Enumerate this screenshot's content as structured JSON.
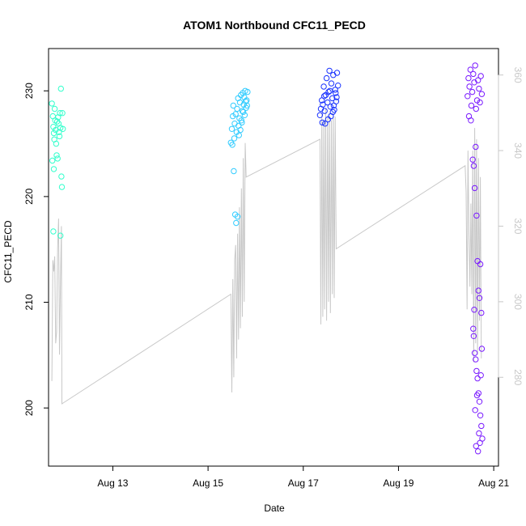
{
  "chart_data": {
    "type": "scatter",
    "title": "ATOM1 Northbound CFC11_PECD",
    "xlabel": "Date",
    "ylabel": "CFC11_PECD",
    "y2label": "",
    "xlim": [
      11.65,
      21.1
    ],
    "ylim": [
      194.5,
      234
    ],
    "y2lim": [
      256.5,
      367
    ],
    "x_ticks": [
      {
        "value": 13,
        "label": "Aug 13"
      },
      {
        "value": 15,
        "label": "Aug 15"
      },
      {
        "value": 17,
        "label": "Aug 17"
      },
      {
        "value": 19,
        "label": "Aug 19"
      },
      {
        "value": 21,
        "label": "Aug 21"
      }
    ],
    "y_ticks": [
      200,
      210,
      220,
      230
    ],
    "y2_ticks": [
      280,
      300,
      320,
      340,
      360
    ],
    "right_axis_color": "#c8c8c8",
    "line_color": "#c8c8c8",
    "series": [
      {
        "values": [
          {
            "x": 11.72,
            "y": 228.8
          },
          {
            "x": 11.74,
            "y": 227.6
          },
          {
            "x": 11.75,
            "y": 226.6
          },
          {
            "x": 11.76,
            "y": 226.0
          },
          {
            "x": 11.77,
            "y": 225.4
          },
          {
            "x": 11.78,
            "y": 228.3
          },
          {
            "x": 11.79,
            "y": 227.2
          },
          {
            "x": 11.8,
            "y": 226.3
          },
          {
            "x": 11.81,
            "y": 225.0
          },
          {
            "x": 11.82,
            "y": 223.9
          },
          {
            "x": 11.73,
            "y": 223.4
          },
          {
            "x": 11.76,
            "y": 222.6
          },
          {
            "x": 11.84,
            "y": 223.6
          },
          {
            "x": 11.85,
            "y": 227.5
          },
          {
            "x": 11.86,
            "y": 226.9
          },
          {
            "x": 11.87,
            "y": 226.1
          },
          {
            "x": 11.88,
            "y": 225.7
          },
          {
            "x": 11.89,
            "y": 227.9
          },
          {
            "x": 11.9,
            "y": 226.5
          },
          {
            "x": 11.91,
            "y": 230.2
          },
          {
            "x": 11.92,
            "y": 221.9
          },
          {
            "x": 11.93,
            "y": 220.9
          },
          {
            "x": 11.94,
            "y": 227.9
          },
          {
            "x": 11.75,
            "y": 216.7
          },
          {
            "x": 11.9,
            "y": 216.3
          },
          {
            "x": 11.95,
            "y": 226.4
          },
          {
            "x": 11.83,
            "y": 227.1
          }
        ],
        "color": "#33ffcc"
      },
      {
        "values": [
          {
            "x": 15.48,
            "y": 225.1
          },
          {
            "x": 15.5,
            "y": 226.4
          },
          {
            "x": 15.52,
            "y": 227.6
          },
          {
            "x": 15.53,
            "y": 228.6
          },
          {
            "x": 15.55,
            "y": 225.5
          },
          {
            "x": 15.56,
            "y": 226.9
          },
          {
            "x": 15.58,
            "y": 227.8
          },
          {
            "x": 15.6,
            "y": 226.1
          },
          {
            "x": 15.61,
            "y": 228.3
          },
          {
            "x": 15.63,
            "y": 229.3
          },
          {
            "x": 15.64,
            "y": 226.7
          },
          {
            "x": 15.66,
            "y": 227.4
          },
          {
            "x": 15.67,
            "y": 228.9
          },
          {
            "x": 15.69,
            "y": 229.6
          },
          {
            "x": 15.7,
            "y": 227.2
          },
          {
            "x": 15.72,
            "y": 228.1
          },
          {
            "x": 15.73,
            "y": 229.8
          },
          {
            "x": 15.75,
            "y": 228.7
          },
          {
            "x": 15.76,
            "y": 229.4
          },
          {
            "x": 15.78,
            "y": 230.0
          },
          {
            "x": 15.8,
            "y": 228.4
          },
          {
            "x": 15.81,
            "y": 229.1
          },
          {
            "x": 15.83,
            "y": 229.9
          },
          {
            "x": 15.51,
            "y": 224.9
          },
          {
            "x": 15.54,
            "y": 222.4
          },
          {
            "x": 15.57,
            "y": 218.3
          },
          {
            "x": 15.59,
            "y": 217.5
          },
          {
            "x": 15.62,
            "y": 218.1
          },
          {
            "x": 15.65,
            "y": 225.8
          },
          {
            "x": 15.68,
            "y": 226.3
          },
          {
            "x": 15.71,
            "y": 227.0
          },
          {
            "x": 15.74,
            "y": 228.0
          },
          {
            "x": 15.77,
            "y": 227.7
          },
          {
            "x": 15.79,
            "y": 229.0
          },
          {
            "x": 15.82,
            "y": 228.6
          }
        ],
        "color": "#33ccff"
      },
      {
        "values": [
          {
            "x": 17.35,
            "y": 227.7
          },
          {
            "x": 17.37,
            "y": 228.3
          },
          {
            "x": 17.39,
            "y": 229.1
          },
          {
            "x": 17.41,
            "y": 228.7
          },
          {
            "x": 17.43,
            "y": 230.4
          },
          {
            "x": 17.45,
            "y": 228.1
          },
          {
            "x": 17.47,
            "y": 229.6
          },
          {
            "x": 17.49,
            "y": 231.2
          },
          {
            "x": 17.51,
            "y": 228.9
          },
          {
            "x": 17.53,
            "y": 229.9
          },
          {
            "x": 17.55,
            "y": 231.9
          },
          {
            "x": 17.57,
            "y": 228.5
          },
          {
            "x": 17.59,
            "y": 230.7
          },
          {
            "x": 17.61,
            "y": 229.3
          },
          {
            "x": 17.63,
            "y": 231.5
          },
          {
            "x": 17.65,
            "y": 228.2
          },
          {
            "x": 17.67,
            "y": 230.1
          },
          {
            "x": 17.69,
            "y": 229.0
          },
          {
            "x": 17.71,
            "y": 231.7
          },
          {
            "x": 17.73,
            "y": 230.5
          },
          {
            "x": 17.4,
            "y": 227.0
          },
          {
            "x": 17.46,
            "y": 226.9
          },
          {
            "x": 17.52,
            "y": 227.3
          },
          {
            "x": 17.58,
            "y": 227.6
          },
          {
            "x": 17.64,
            "y": 228.6
          },
          {
            "x": 17.7,
            "y": 229.4
          },
          {
            "x": 17.44,
            "y": 229.5
          },
          {
            "x": 17.56,
            "y": 230.0
          },
          {
            "x": 17.62,
            "y": 228.0
          },
          {
            "x": 17.68,
            "y": 229.8
          }
        ],
        "color": "#1a33ff"
      },
      {
        "values": [
          {
            "x": 20.45,
            "y": 229.5
          },
          {
            "x": 20.47,
            "y": 231.2
          },
          {
            "x": 20.49,
            "y": 230.4
          },
          {
            "x": 20.51,
            "y": 232.0
          },
          {
            "x": 20.53,
            "y": 228.6
          },
          {
            "x": 20.55,
            "y": 229.9
          },
          {
            "x": 20.57,
            "y": 231.6
          },
          {
            "x": 20.59,
            "y": 230.8
          },
          {
            "x": 20.61,
            "y": 232.4
          },
          {
            "x": 20.63,
            "y": 228.3
          },
          {
            "x": 20.65,
            "y": 229.1
          },
          {
            "x": 20.67,
            "y": 231.0
          },
          {
            "x": 20.69,
            "y": 230.2
          },
          {
            "x": 20.71,
            "y": 228.9
          },
          {
            "x": 20.73,
            "y": 231.4
          },
          {
            "x": 20.75,
            "y": 229.7
          },
          {
            "x": 20.48,
            "y": 227.6
          },
          {
            "x": 20.52,
            "y": 227.2
          },
          {
            "x": 20.56,
            "y": 223.5
          },
          {
            "x": 20.58,
            "y": 222.9
          },
          {
            "x": 20.6,
            "y": 220.8
          },
          {
            "x": 20.62,
            "y": 224.7
          },
          {
            "x": 20.64,
            "y": 218.2
          },
          {
            "x": 20.66,
            "y": 213.9
          },
          {
            "x": 20.68,
            "y": 211.1
          },
          {
            "x": 20.7,
            "y": 210.4
          },
          {
            "x": 20.72,
            "y": 213.6
          },
          {
            "x": 20.74,
            "y": 209.0
          },
          {
            "x": 20.58,
            "y": 206.8
          },
          {
            "x": 20.6,
            "y": 205.2
          },
          {
            "x": 20.62,
            "y": 204.6
          },
          {
            "x": 20.64,
            "y": 203.5
          },
          {
            "x": 20.66,
            "y": 202.8
          },
          {
            "x": 20.68,
            "y": 201.4
          },
          {
            "x": 20.7,
            "y": 200.6
          },
          {
            "x": 20.72,
            "y": 199.3
          },
          {
            "x": 20.74,
            "y": 198.3
          },
          {
            "x": 20.76,
            "y": 197.1
          },
          {
            "x": 20.63,
            "y": 196.4
          },
          {
            "x": 20.67,
            "y": 195.9
          },
          {
            "x": 20.71,
            "y": 196.7
          },
          {
            "x": 20.69,
            "y": 197.6
          },
          {
            "x": 20.61,
            "y": 199.8
          },
          {
            "x": 20.65,
            "y": 201.2
          },
          {
            "x": 20.73,
            "y": 203.1
          },
          {
            "x": 20.75,
            "y": 205.6
          },
          {
            "x": 20.57,
            "y": 207.5
          },
          {
            "x": 20.59,
            "y": 209.3
          }
        ],
        "color": "#7a1aff"
      }
    ],
    "line_series": {
      "axis": "right",
      "values": [
        {
          "x": 11.72,
          "y": 279
        },
        {
          "x": 11.74,
          "y": 311
        },
        {
          "x": 11.76,
          "y": 308
        },
        {
          "x": 11.78,
          "y": 312
        },
        {
          "x": 11.8,
          "y": 289
        },
        {
          "x": 11.82,
          "y": 292
        },
        {
          "x": 11.84,
          "y": 314
        },
        {
          "x": 11.86,
          "y": 322
        },
        {
          "x": 11.88,
          "y": 286
        },
        {
          "x": 11.9,
          "y": 305
        },
        {
          "x": 11.92,
          "y": 320
        },
        {
          "x": 11.93,
          "y": 273
        },
        {
          "x": 15.48,
          "y": 302
        },
        {
          "x": 15.5,
          "y": 276
        },
        {
          "x": 15.52,
          "y": 306
        },
        {
          "x": 15.54,
          "y": 280
        },
        {
          "x": 15.56,
          "y": 311
        },
        {
          "x": 15.58,
          "y": 315
        },
        {
          "x": 15.6,
          "y": 285
        },
        {
          "x": 15.62,
          "y": 318
        },
        {
          "x": 15.64,
          "y": 290
        },
        {
          "x": 15.66,
          "y": 325
        },
        {
          "x": 15.68,
          "y": 293
        },
        {
          "x": 15.7,
          "y": 330
        },
        {
          "x": 15.72,
          "y": 296
        },
        {
          "x": 15.74,
          "y": 338
        },
        {
          "x": 15.76,
          "y": 300
        },
        {
          "x": 15.78,
          "y": 342
        },
        {
          "x": 15.8,
          "y": 333
        },
        {
          "x": 17.35,
          "y": 343
        },
        {
          "x": 17.37,
          "y": 294
        },
        {
          "x": 17.39,
          "y": 350
        },
        {
          "x": 17.41,
          "y": 296
        },
        {
          "x": 17.43,
          "y": 348
        },
        {
          "x": 17.45,
          "y": 298
        },
        {
          "x": 17.47,
          "y": 351
        },
        {
          "x": 17.49,
          "y": 295
        },
        {
          "x": 17.51,
          "y": 349
        },
        {
          "x": 17.53,
          "y": 300
        },
        {
          "x": 17.55,
          "y": 350
        },
        {
          "x": 17.57,
          "y": 297
        },
        {
          "x": 17.59,
          "y": 348
        },
        {
          "x": 17.61,
          "y": 302
        },
        {
          "x": 17.63,
          "y": 350
        },
        {
          "x": 17.65,
          "y": 301
        },
        {
          "x": 17.67,
          "y": 349
        },
        {
          "x": 17.69,
          "y": 314
        },
        {
          "x": 20.4,
          "y": 336
        },
        {
          "x": 20.42,
          "y": 329
        },
        {
          "x": 20.44,
          "y": 298
        },
        {
          "x": 20.46,
          "y": 340
        },
        {
          "x": 20.48,
          "y": 318
        },
        {
          "x": 20.5,
          "y": 304
        },
        {
          "x": 20.52,
          "y": 326
        },
        {
          "x": 20.54,
          "y": 302
        },
        {
          "x": 20.56,
          "y": 340
        },
        {
          "x": 20.58,
          "y": 284
        },
        {
          "x": 20.6,
          "y": 346
        },
        {
          "x": 20.62,
          "y": 289
        },
        {
          "x": 20.64,
          "y": 343
        },
        {
          "x": 20.66,
          "y": 286
        },
        {
          "x": 20.68,
          "y": 338
        },
        {
          "x": 20.7,
          "y": 295
        },
        {
          "x": 20.72,
          "y": 333
        },
        {
          "x": 20.74,
          "y": 285
        }
      ]
    }
  }
}
